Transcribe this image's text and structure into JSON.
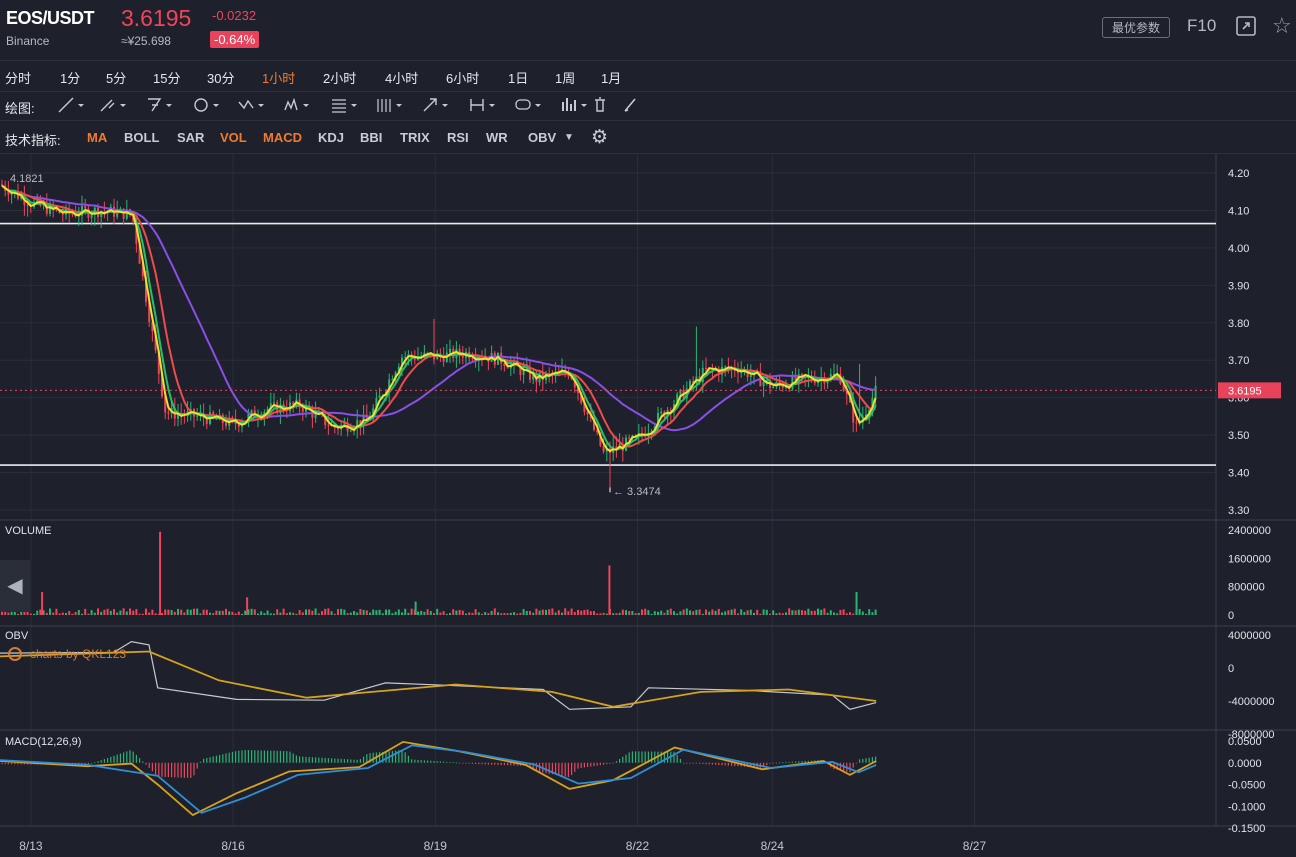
{
  "header": {
    "symbol": "EOS/USDT",
    "exchange": "Binance",
    "price": "3.6195",
    "cny_price": "≈¥25.698",
    "change": "-0.0232",
    "change_pct": "-0.64%",
    "params_label": "最优参数",
    "f10_label": "F10"
  },
  "periods": [
    {
      "label": "分时",
      "active": false
    },
    {
      "label": "1分",
      "active": false
    },
    {
      "label": "5分",
      "active": false
    },
    {
      "label": "15分",
      "active": false
    },
    {
      "label": "30分",
      "active": false
    },
    {
      "label": "1小时",
      "active": true
    },
    {
      "label": "2小时",
      "active": false
    },
    {
      "label": "4小时",
      "active": false
    },
    {
      "label": "6小时",
      "active": false
    },
    {
      "label": "1日",
      "active": false
    },
    {
      "label": "1周",
      "active": false
    },
    {
      "label": "1月",
      "active": false
    }
  ],
  "draw_label": "绘图:",
  "draw_tools": [
    "line-tool-icon",
    "ray-tool-icon",
    "channel-tool-icon",
    "circle-tool-icon",
    "pattern-tool-icon",
    "wave-tool-icon",
    "fib-tool-icon",
    "grid-tool-icon",
    "arrow-tool-icon",
    "range-tool-icon",
    "comment-tool-icon",
    "bars-tool-icon",
    "trash-icon",
    "brush-icon"
  ],
  "indicators_label": "技术指标:",
  "indicators": [
    {
      "label": "MA",
      "on": true
    },
    {
      "label": "BOLL",
      "on": false
    },
    {
      "label": "SAR",
      "on": false
    },
    {
      "label": "VOL",
      "on": true
    },
    {
      "label": "MACD",
      "on": true
    },
    {
      "label": "KDJ",
      "on": false
    },
    {
      "label": "BBI",
      "on": false
    },
    {
      "label": "TRIX",
      "on": false
    },
    {
      "label": "RSI",
      "on": false
    },
    {
      "label": "WR",
      "on": false
    },
    {
      "label": "OBV",
      "on": false
    }
  ],
  "credit": "charts by QKL123",
  "colors": {
    "up": "#26b573",
    "down": "#f0445a",
    "ma_fast": "#f2e02f",
    "ma_mid": "#27c06a",
    "ma_slow": "#f04b4b",
    "ma_long": "#8a4fe8",
    "obv": "#c7c9cf",
    "obv_ma": "#d6a21e",
    "macd_dif": "#d6a21e",
    "macd_dea": "#2f8ed6"
  },
  "chart_data": [
    {
      "type": "candlestick",
      "interval": "1h",
      "yticks": [
        "4.20",
        "4.10",
        "4.00",
        "3.90",
        "3.80",
        "3.70",
        "3.60",
        "3.50",
        "3.40",
        "3.30"
      ],
      "ylim": [
        3.28,
        4.23
      ],
      "x_ticks": [
        "8/13",
        "8/16",
        "8/19",
        "8/22",
        "8/24",
        "8/27"
      ],
      "current_price": "3.6195",
      "high_label": "4.1821",
      "low_label": "3.3474",
      "support_line": 3.42,
      "resistance_line": 4.065,
      "close_path": [
        {
          "t": "8/12 13:00",
          "v": 4.17
        },
        {
          "t": "8/13 00:00",
          "v": 4.12
        },
        {
          "t": "8/13 12:00",
          "v": 4.09
        },
        {
          "t": "8/14 00:00",
          "v": 4.1
        },
        {
          "t": "8/14 12:00",
          "v": 4.09
        },
        {
          "t": "8/15 00:00",
          "v": 3.56
        },
        {
          "t": "8/15 12:00",
          "v": 3.55
        },
        {
          "t": "8/16 00:00",
          "v": 3.53
        },
        {
          "t": "8/16 12:00",
          "v": 3.57
        },
        {
          "t": "8/17 00:00",
          "v": 3.58
        },
        {
          "t": "8/17 12:00",
          "v": 3.52
        },
        {
          "t": "8/18 00:00",
          "v": 3.54
        },
        {
          "t": "8/18 12:00",
          "v": 3.71
        },
        {
          "t": "8/19 00:00",
          "v": 3.71
        },
        {
          "t": "8/19 12:00",
          "v": 3.72
        },
        {
          "t": "8/20 00:00",
          "v": 3.7
        },
        {
          "t": "8/20 12:00",
          "v": 3.65
        },
        {
          "t": "8/21 00:00",
          "v": 3.67
        },
        {
          "t": "8/21 12:00",
          "v": 3.45
        },
        {
          "t": "8/22 00:00",
          "v": 3.49
        },
        {
          "t": "8/22 12:00",
          "v": 3.58
        },
        {
          "t": "8/23 00:00",
          "v": 3.67
        },
        {
          "t": "8/23 12:00",
          "v": 3.68
        },
        {
          "t": "8/24 00:00",
          "v": 3.63
        },
        {
          "t": "8/24 12:00",
          "v": 3.65
        },
        {
          "t": "8/25 00:00",
          "v": 3.66
        },
        {
          "t": "8/25 06:00",
          "v": 3.52
        },
        {
          "t": "8/25 13:00",
          "v": 3.6195
        }
      ]
    },
    {
      "type": "bar",
      "title": "VOLUME",
      "yticks": [
        "2400000",
        "1600000",
        "800000",
        "0"
      ],
      "ylim": [
        0,
        2400000
      ],
      "spikes": [
        {
          "t": "8/14 22:00",
          "v": 2350000,
          "dir": "down"
        },
        {
          "t": "8/21 14:00",
          "v": 1400000,
          "dir": "down"
        },
        {
          "t": "8/13 04:00",
          "v": 650000,
          "dir": "down"
        },
        {
          "t": "8/16 05:00",
          "v": 500000,
          "dir": "down"
        },
        {
          "t": "8/25 06:00",
          "v": 650000,
          "dir": "up"
        },
        {
          "t": "8/18 17:00",
          "v": 380000,
          "dir": "up"
        }
      ]
    },
    {
      "type": "line",
      "title": "OBV",
      "yticks": [
        "4000000",
        "0",
        "-4000000",
        "-8000000"
      ],
      "ylim": [
        -8000000,
        4000000
      ],
      "series": [
        {
          "key": "obv",
          "points": [
            [
              0,
              1800000
            ],
            [
              0.13,
              1900000
            ],
            [
              0.15,
              3200000
            ],
            [
              0.17,
              2800000
            ],
            [
              0.18,
              -2400000
            ],
            [
              0.27,
              -3800000
            ],
            [
              0.37,
              -3900000
            ],
            [
              0.44,
              -1800000
            ],
            [
              0.51,
              -2100000
            ],
            [
              0.62,
              -2600000
            ],
            [
              0.65,
              -5000000
            ],
            [
              0.72,
              -4700000
            ],
            [
              0.74,
              -2400000
            ],
            [
              0.85,
              -2700000
            ],
            [
              0.95,
              -3300000
            ],
            [
              0.97,
              -5000000
            ],
            [
              1,
              -4200000
            ]
          ]
        },
        {
          "key": "obv_ma",
          "points": [
            [
              0,
              1400000
            ],
            [
              0.17,
              2000000
            ],
            [
              0.25,
              -1500000
            ],
            [
              0.35,
              -3600000
            ],
            [
              0.52,
              -2000000
            ],
            [
              0.63,
              -2900000
            ],
            [
              0.7,
              -4700000
            ],
            [
              0.8,
              -2900000
            ],
            [
              0.9,
              -2600000
            ],
            [
              1,
              -4000000
            ]
          ]
        }
      ]
    },
    {
      "type": "line",
      "title": "MACD(12,26,9)",
      "yticks": [
        "0.0500",
        "0.0000",
        "-0.0500",
        "-0.1000",
        "-0.1500"
      ],
      "ylim": [
        -0.15,
        0.05
      ],
      "series": [
        {
          "key": "dif",
          "points": [
            [
              0,
              0.004
            ],
            [
              0.1,
              -0.008
            ],
            [
              0.15,
              -0.002
            ],
            [
              0.18,
              -0.05
            ],
            [
              0.22,
              -0.12
            ],
            [
              0.27,
              -0.07
            ],
            [
              0.33,
              -0.02
            ],
            [
              0.41,
              -0.01
            ],
            [
              0.46,
              0.048
            ],
            [
              0.52,
              0.028
            ],
            [
              0.6,
              -0.005
            ],
            [
              0.65,
              -0.06
            ],
            [
              0.7,
              -0.04
            ],
            [
              0.77,
              0.035
            ],
            [
              0.87,
              -0.015
            ],
            [
              0.94,
              0.004
            ],
            [
              0.97,
              -0.028
            ],
            [
              1,
              0.004
            ]
          ]
        },
        {
          "key": "dea",
          "points": [
            [
              0,
              0.006
            ],
            [
              0.1,
              -0.005
            ],
            [
              0.18,
              -0.03
            ],
            [
              0.23,
              -0.115
            ],
            [
              0.28,
              -0.08
            ],
            [
              0.34,
              -0.028
            ],
            [
              0.42,
              -0.012
            ],
            [
              0.47,
              0.04
            ],
            [
              0.53,
              0.025
            ],
            [
              0.61,
              -0.004
            ],
            [
              0.66,
              -0.048
            ],
            [
              0.72,
              -0.035
            ],
            [
              0.78,
              0.03
            ],
            [
              0.88,
              -0.012
            ],
            [
              0.95,
              0.002
            ],
            [
              0.98,
              -0.022
            ],
            [
              1,
              -0.005
            ]
          ]
        }
      ]
    }
  ]
}
